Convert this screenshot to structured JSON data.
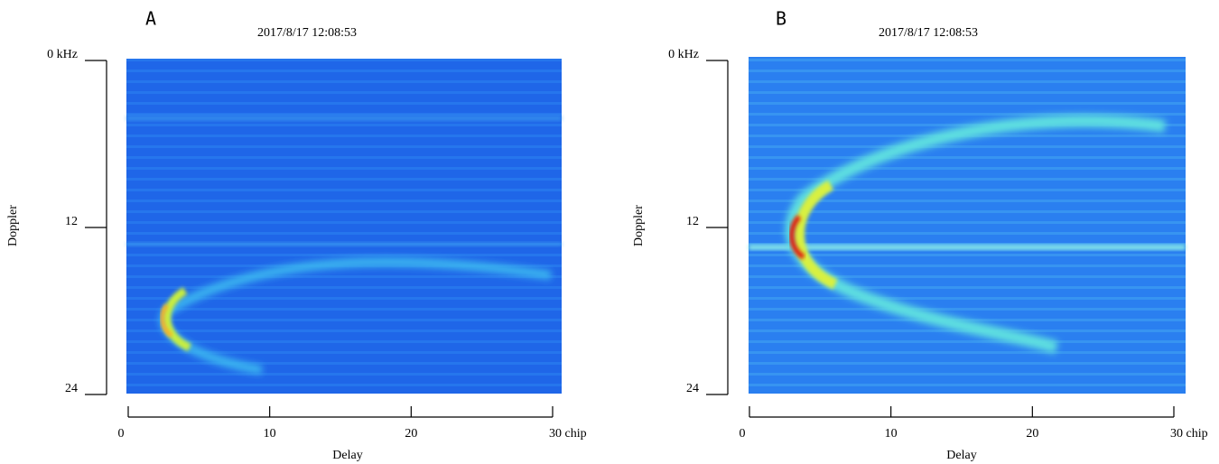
{
  "chart_data": [
    {
      "type": "heatmap",
      "panel_label": "A",
      "title": "2017/8/17 12:08:53",
      "x_label": "Delay",
      "y_label": "Doppler",
      "xlim": [
        0,
        30
      ],
      "xticks": [
        0,
        10,
        20,
        {
          "value": 30,
          "label": "30 chip"
        }
      ],
      "ylim": [
        24,
        0
      ],
      "yticks": [
        {
          "value": 0,
          "label": "0 kHz"
        },
        12,
        24
      ]
    },
    {
      "type": "heatmap",
      "panel_label": "B",
      "title": "2017/8/17 12:08:53",
      "x_label": "Delay",
      "y_label": "Doppler",
      "xlim": [
        0,
        30
      ],
      "xticks": [
        0,
        10,
        20,
        {
          "value": 30,
          "label": "30 chip"
        }
      ],
      "ylim": [
        24,
        0
      ],
      "yticks": [
        {
          "value": 0,
          "label": "0 kHz"
        },
        12,
        24
      ]
    }
  ]
}
